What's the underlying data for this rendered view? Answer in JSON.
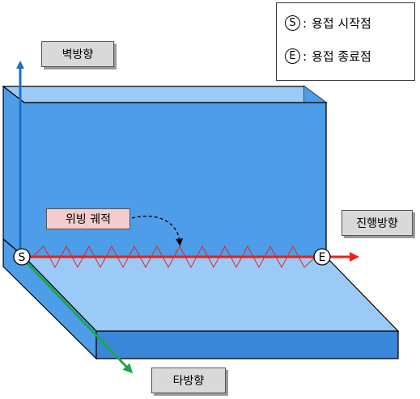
{
  "legend": {
    "start_symbol": "S",
    "start_text": "용접 시작점",
    "end_symbol": "E",
    "end_text": "용접 종료점",
    "separator": ":"
  },
  "labels": {
    "wall_direction": "벽방향",
    "travel_direction": "진행방향",
    "other_direction": "타방향",
    "weaving_path": "위빙 궤적",
    "start_marker": "S",
    "end_marker": "E"
  },
  "colors": {
    "plate_front": "#4d9de8",
    "plate_top": "#9ccaf6",
    "plate_side": "#3a86d8",
    "wall_arrow": "#1a6fc7",
    "travel_arrow": "#e8201c",
    "other_arrow": "#1aa84a",
    "weave": "#e8201c"
  }
}
